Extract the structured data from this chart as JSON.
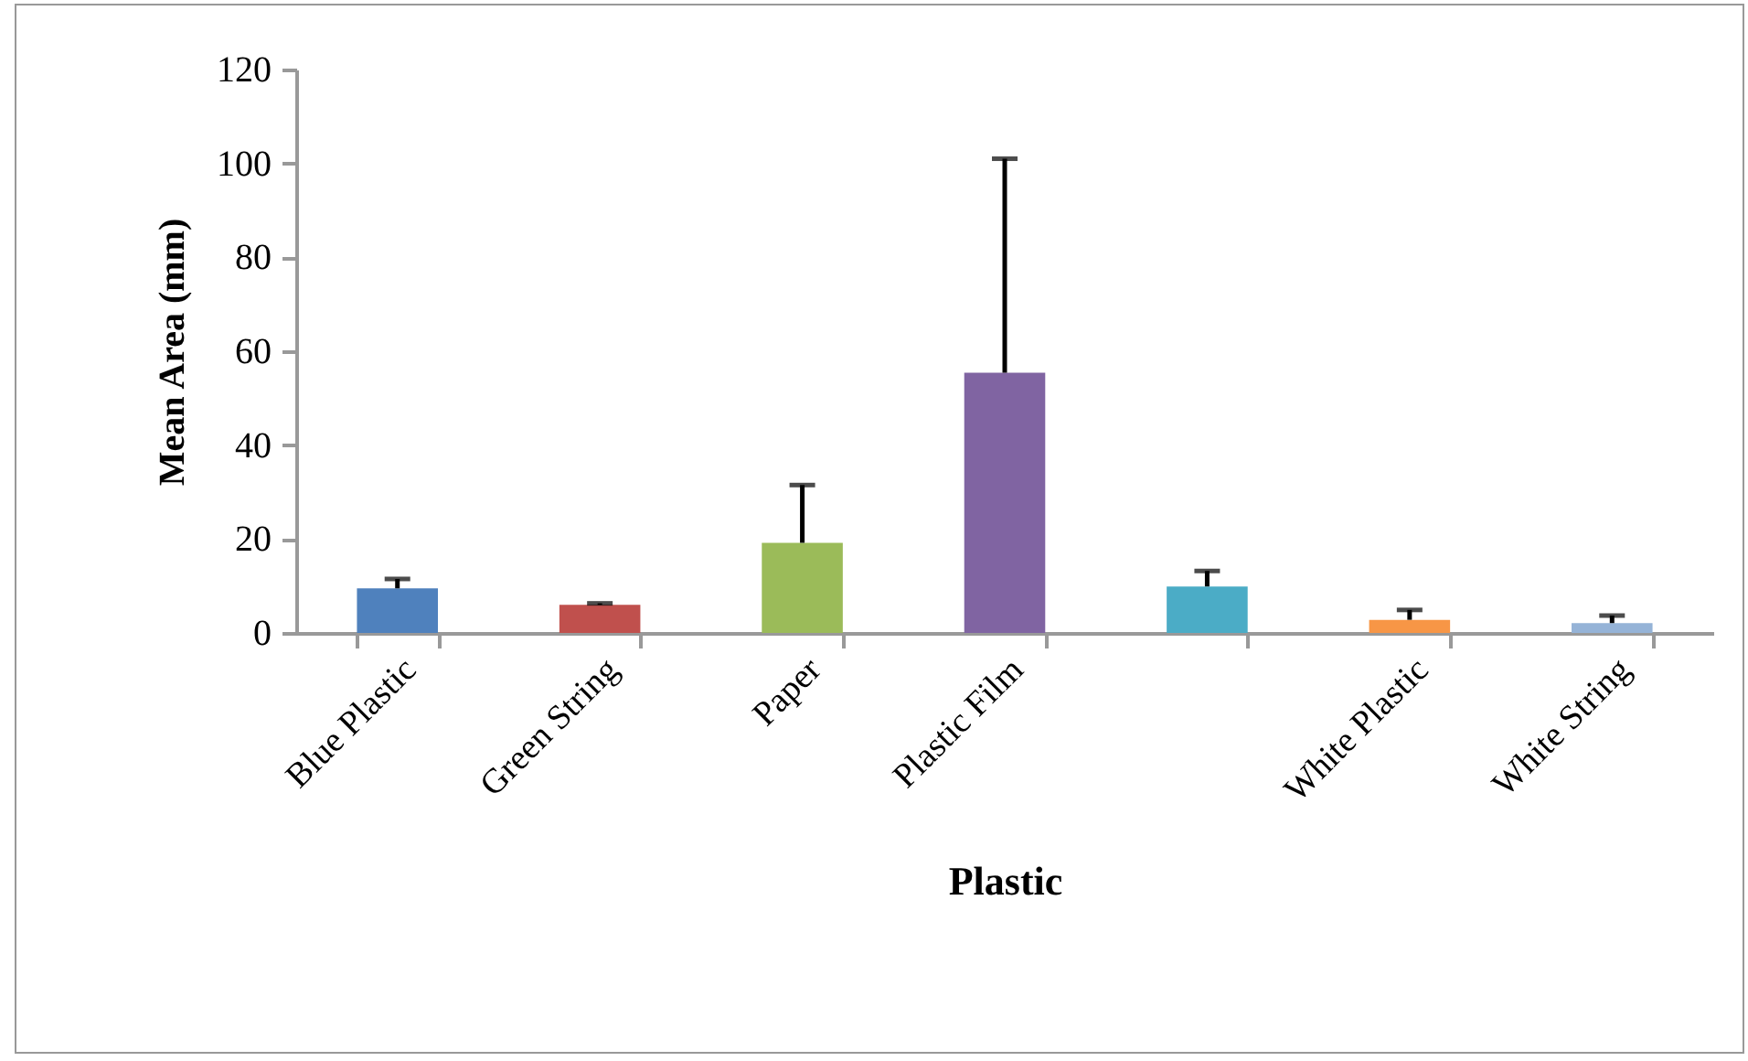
{
  "chart_data": {
    "type": "bar",
    "xlabel": "Plastic",
    "ylabel": "Mean Area (mm)",
    "categories": [
      "Blue Plastic",
      "Green String",
      "Paper",
      "Plastic Film",
      null,
      "White Plastic",
      "White String"
    ],
    "values": [
      9.5,
      6.0,
      19.2,
      55.4,
      9.9,
      2.8,
      2.1
    ],
    "colors": [
      "#4f81bd",
      "#c0504d",
      "#9bbb59",
      "#8064a2",
      "#4bacc6",
      "#f79646",
      "#95b3d7"
    ],
    "errors": [
      [
        9.5,
        11.5
      ],
      [
        6.0,
        6.3
      ],
      [
        19.2,
        31.5
      ],
      [
        55.4,
        101
      ],
      [
        9.9,
        13.2
      ],
      [
        2.8,
        4.9
      ],
      [
        2.1,
        3.7
      ]
    ],
    "ylim": [
      0,
      120
    ],
    "yticks": [
      0,
      20,
      40,
      60,
      80,
      100,
      120
    ],
    "grid": false
  }
}
